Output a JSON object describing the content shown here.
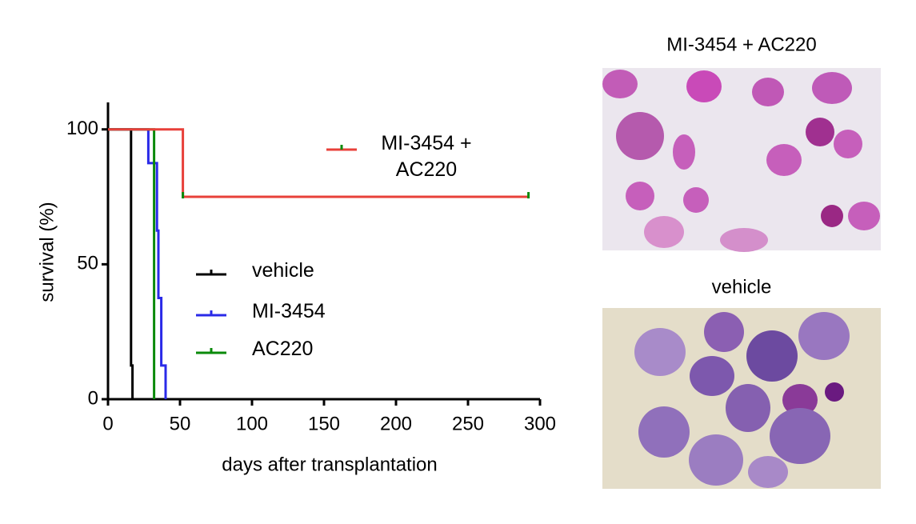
{
  "chart_data": {
    "type": "step",
    "xlabel": "days after transplantation",
    "ylabel": "survival (%)",
    "xlim": [
      0,
      300
    ],
    "xticks": [
      0,
      50,
      100,
      150,
      200,
      250,
      300
    ],
    "ylim": [
      0,
      110
    ],
    "yticks": [
      0,
      50,
      100
    ],
    "series": [
      {
        "name": "vehicle",
        "color": "#000000",
        "x": [
          0,
          16,
          17
        ],
        "values": [
          100,
          12.5,
          0
        ]
      },
      {
        "name": "MI-3454",
        "color": "#2a2ae8",
        "x": [
          0,
          28,
          34,
          35,
          37,
          40
        ],
        "values": [
          100,
          87.5,
          62.5,
          37.5,
          12.5,
          0
        ]
      },
      {
        "name": "AC220",
        "color": "#0a8a0a",
        "x": [
          0,
          32
        ],
        "values": [
          100,
          0
        ]
      },
      {
        "name": "MI-3454 + AC220",
        "color": "#e8403a",
        "censor_color": "#0a8a0a",
        "x": [
          0,
          52,
          292
        ],
        "values": [
          100,
          75,
          75
        ],
        "censored": [
          52,
          292
        ]
      }
    ]
  },
  "images": [
    {
      "title": "MI-3454 + AC220"
    },
    {
      "title": "vehicle"
    }
  ]
}
